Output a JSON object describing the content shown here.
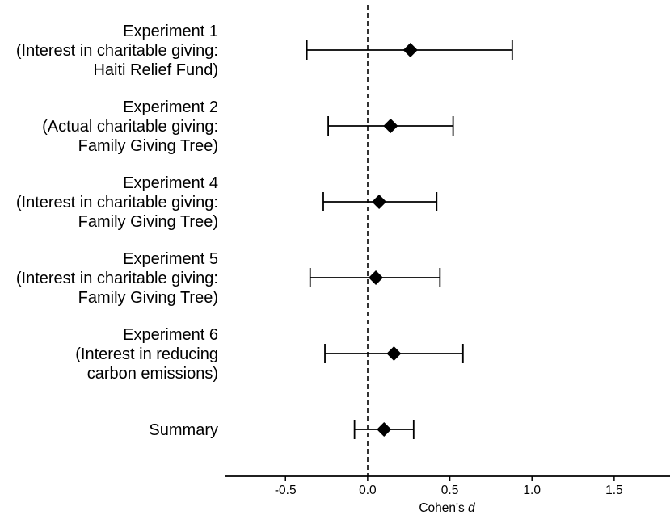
{
  "chart_data": {
    "type": "forest",
    "xlabel": "Cohen's ",
    "xlabel_italic": "d",
    "xlim": [
      -0.87,
      1.84
    ],
    "x_ticks": [
      -0.5,
      0.0,
      0.5,
      1.0,
      1.5
    ],
    "x_tick_labels": [
      "-0.5",
      "0.0",
      "0.5",
      "1.0",
      "1.5"
    ],
    "reference_line": 0,
    "grid": false,
    "rows": [
      {
        "label": [
          "Experiment 1",
          "(Interest in charitable giving:",
          "Haiti Relief Fund)"
        ],
        "estimate": 0.26,
        "ci_low": -0.37,
        "ci_high": 0.88
      },
      {
        "label": [
          "Experiment 2",
          "(Actual charitable giving:",
          "Family Giving Tree)"
        ],
        "estimate": 0.14,
        "ci_low": -0.24,
        "ci_high": 0.52
      },
      {
        "label": [
          "Experiment 4",
          "(Interest in charitable giving:",
          "Family Giving Tree)"
        ],
        "estimate": 0.07,
        "ci_low": -0.27,
        "ci_high": 0.42
      },
      {
        "label": [
          "Experiment 5",
          "(Interest in charitable giving:",
          "Family Giving Tree)"
        ],
        "estimate": 0.05,
        "ci_low": -0.35,
        "ci_high": 0.44
      },
      {
        "label": [
          "Experiment 6",
          "(Interest in reducing",
          "carbon emissions)"
        ],
        "estimate": 0.16,
        "ci_low": -0.26,
        "ci_high": 0.58
      },
      {
        "label": [
          "Summary"
        ],
        "estimate": 0.1,
        "ci_low": -0.08,
        "ci_high": 0.28
      }
    ],
    "colors": {
      "marker": "#000000",
      "line": "#000000",
      "background": "#ffffff"
    }
  }
}
